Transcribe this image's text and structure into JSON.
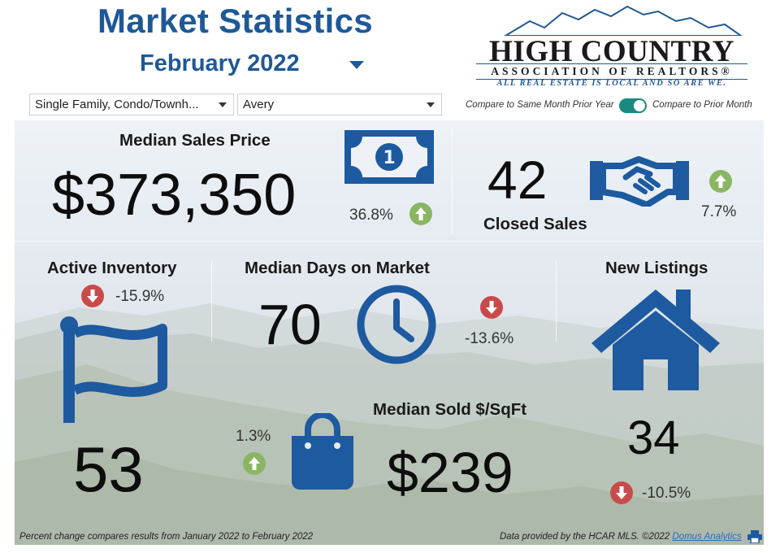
{
  "header": {
    "title": "Market Statistics",
    "period": "February 2022"
  },
  "logo": {
    "line1": "HIGH COUNTRY",
    "line2": "ASSOCIATION OF REALTORS®",
    "line3": "ALL REAL ESTATE IS LOCAL AND SO ARE WE."
  },
  "filters": {
    "property_type": "Single Family, Condo/Townh...",
    "area": "Avery"
  },
  "compare": {
    "left_label": "Compare to Same Month Prior Year",
    "right_label": "Compare to Prior Month",
    "toggle_on": true
  },
  "metrics": {
    "median_sales_price": {
      "label": "Median Sales Price",
      "value": "$373,350",
      "change": "36.8%",
      "direction": "up"
    },
    "closed_sales": {
      "label": "Closed Sales",
      "value": "42",
      "change": "7.7%",
      "direction": "up"
    },
    "active_inventory": {
      "label": "Active Inventory",
      "value": "53",
      "change": "-15.9%",
      "direction": "down"
    },
    "median_days_on_market": {
      "label": "Median Days on Market",
      "value": "70",
      "change": "-13.6%",
      "direction": "down"
    },
    "new_listings": {
      "label": "New Listings",
      "value": "34",
      "change": "-10.5%",
      "direction": "down"
    },
    "median_sold_sqft": {
      "label": "Median Sold $/SqFt",
      "value": "$239",
      "change": "1.3%",
      "direction": "up"
    }
  },
  "icons": {
    "money": "money-bill-icon",
    "handshake": "handshake-icon",
    "flag": "flag-icon",
    "clock": "clock-icon",
    "house": "house-icon",
    "bag": "shopping-bag-icon",
    "print": "print-icon"
  },
  "colors": {
    "brand_blue": "#1f5896",
    "icon_blue": "#1d5aa0",
    "up_green": "#8ab663",
    "down_red": "#c94a4a",
    "toggle_teal": "#1a8a80"
  },
  "footer": {
    "note": "Percent change compares results from January 2022 to February 2022",
    "source_prefix": "Data provided by the HCAR MLS. ©2022",
    "source_link": "Domus Analytics"
  }
}
